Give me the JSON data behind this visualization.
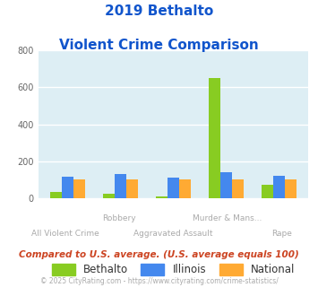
{
  "title_line1": "2019 Bethalto",
  "title_line2": "Violent Crime Comparison",
  "categories": [
    "All Violent Crime",
    "Robbery",
    "Aggravated Assault",
    "Murder & Mans...",
    "Rape"
  ],
  "bethalto": [
    35,
    25,
    10,
    650,
    75
  ],
  "illinois": [
    115,
    130,
    110,
    140,
    120
  ],
  "national": [
    100,
    100,
    100,
    100,
    100
  ],
  "color_bethalto": "#88cc22",
  "color_illinois": "#4488ee",
  "color_national": "#ffaa33",
  "ylim": [
    0,
    800
  ],
  "yticks": [
    0,
    200,
    400,
    600,
    800
  ],
  "plot_bg": "#ddeef4",
  "grid_color": "#ffffff",
  "footer1": "Compared to U.S. average. (U.S. average equals 100)",
  "footer2": "© 2025 CityRating.com - https://www.cityrating.com/crime-statistics/",
  "title_color": "#1155cc",
  "footer1_color": "#cc4422",
  "footer2_color": "#aaaaaa",
  "bar_width": 0.22,
  "labels_top": [
    "",
    "Robbery",
    "",
    "Murder & Mans...",
    ""
  ],
  "labels_bot": [
    "All Violent Crime",
    "",
    "Aggravated Assault",
    "",
    "Rape"
  ]
}
